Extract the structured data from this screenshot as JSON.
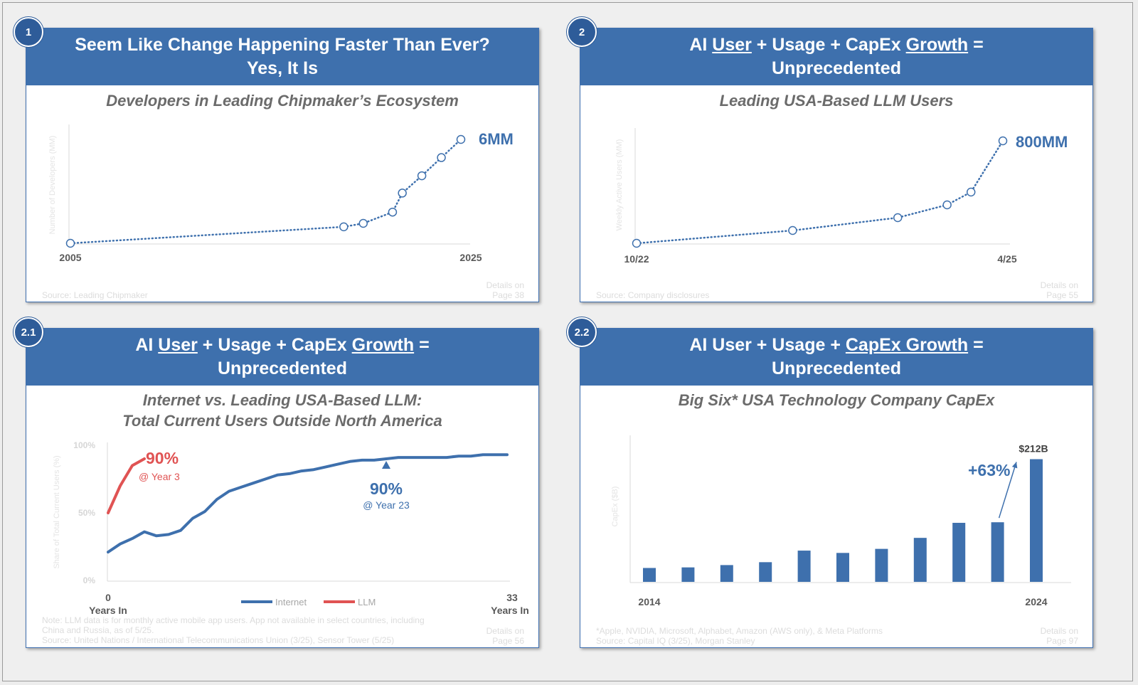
{
  "panels": [
    {
      "badge": "1",
      "header": {
        "line1": "Seem Like Change Happening Faster Than Ever?",
        "line2": "Yes, It Is"
      },
      "subtitle": "Developers in Leading Chipmaker’s Ecosystem",
      "chart_data": {
        "type": "line",
        "title": "Developers in Leading Chipmaker’s Ecosystem",
        "x": [
          2005,
          2019,
          2020,
          2021.5,
          2022,
          2023,
          2024,
          2025
        ],
        "y": [
          0,
          0.95,
          1.15,
          1.8,
          2.9,
          3.9,
          4.95,
          6
        ],
        "xlim": [
          2005,
          2025
        ],
        "ylim": [
          0,
          6
        ],
        "x_tick_labels": [
          "2005",
          "2025"
        ],
        "end_label": "6MM",
        "ylabel": "Number of Developers (MM)",
        "style": "dotted line with hollow circle markers",
        "grid": false
      },
      "footer": {
        "source": "Source: Leading Chipmaker",
        "details_line1": "Details on",
        "details_line2": "Page 38"
      }
    },
    {
      "badge": "2",
      "header": {
        "line1_parts": [
          "AI ",
          "User",
          " + Usage + CapEx ",
          "Growth",
          " ="
        ],
        "line2": "Unprecedented"
      },
      "subtitle": "Leading USA-Based LLM Users",
      "chart_data": {
        "type": "line",
        "title": "Leading USA-Based LLM Users",
        "x": [
          "10/22",
          "10/23",
          "9/24",
          "12/24",
          "2/25",
          "4/25"
        ],
        "x_index": [
          0,
          9.8,
          16.4,
          19.5,
          21,
          23
        ],
        "y": [
          0,
          100,
          200,
          300,
          400,
          800
        ],
        "ylim": [
          0,
          800
        ],
        "x_tick_labels": [
          "10/22",
          "4/25"
        ],
        "end_label": "800MM",
        "ylabel": "Weekly Active Users (MM)",
        "style": "dotted line with hollow circle markers",
        "grid": false
      },
      "footer": {
        "source": "Source: Company disclosures",
        "details_line1": "Details on",
        "details_line2": "Page 55"
      }
    },
    {
      "badge": "2.1",
      "header": {
        "line1_parts": [
          "AI ",
          "User",
          " + Usage + CapEx ",
          "Growth",
          " ="
        ],
        "line2": "Unprecedented"
      },
      "subtitle_line1": "Internet vs. Leading USA-Based LLM:",
      "subtitle_line2": "Total Current Users Outside North America",
      "chart_data": {
        "type": "line",
        "title": "Internet vs. Leading USA-Based LLM: Total Current Users Outside North America",
        "ylabel": "Share of Total Current Users (%)",
        "xlim": [
          0,
          33
        ],
        "ylim": [
          0,
          100
        ],
        "y_ticks": [
          "0%",
          "50%",
          "100%"
        ],
        "x_tick_labels": [
          "0",
          "33"
        ],
        "x_tick_sublabel": "Years In",
        "series": [
          {
            "name": "Internet",
            "color": "#3e70ad",
            "x": [
              0,
              1,
              2,
              3,
              4,
              5,
              6,
              7,
              8,
              9,
              10,
              11,
              12,
              13,
              14,
              15,
              16,
              17,
              18,
              19,
              20,
              21,
              22,
              23,
              24,
              25,
              26,
              27,
              28,
              29,
              30,
              31,
              32,
              33
            ],
            "y": [
              21,
              27,
              31,
              36,
              33,
              34,
              37,
              46,
              51,
              60,
              66,
              69,
              72,
              75,
              78,
              79,
              81,
              82,
              84,
              86,
              88,
              89,
              89,
              90,
              91,
              91,
              91,
              91,
              91,
              92,
              92,
              93,
              93,
              93
            ]
          },
          {
            "name": "LLM",
            "color": "#e05353",
            "x": [
              0,
              1,
              2,
              3
            ],
            "y": [
              50,
              70,
              85,
              90
            ]
          }
        ],
        "annotations": [
          {
            "value": "90%",
            "sub": "@ Year 3",
            "series": "LLM"
          },
          {
            "value": "90%",
            "sub": "@ Year 23",
            "series": "Internet"
          }
        ],
        "legend": "bottom"
      },
      "footer": {
        "note_line1": "Note: LLM data is for monthly active mobile app users. App not available in select countries, including",
        "note_line2": "China and Russia, as of 5/25.",
        "note_line3": "Source: United Nations / International Telecommunications Union (3/25), Sensor Tower (5/25)",
        "details_line1": "Details on",
        "details_line2": "Page 56"
      }
    },
    {
      "badge": "2.2",
      "header": {
        "line1_parts": [
          "AI User + Usage + ",
          "CapEx Growth",
          " ="
        ],
        "line2": "Unprecedented"
      },
      "subtitle": "Big Six* USA Technology Company CapEx",
      "chart_data": {
        "type": "bar",
        "title": "Big Six* USA Technology Company CapEx",
        "ylabel": "CapEx ($B)",
        "categories": [
          "2014",
          "2015",
          "2016",
          "2017",
          "2018",
          "2019",
          "2020",
          "2021",
          "2022",
          "2023",
          "2024"
        ],
        "values": [
          24,
          25,
          29,
          34,
          54,
          50,
          57,
          76,
          102,
          103,
          212
        ],
        "ylim": [
          0,
          220
        ],
        "x_tick_labels": [
          "2014",
          "2024"
        ],
        "last_label": "$212B",
        "growth_label": "+63%",
        "color": "#3e70ad",
        "grid": false
      },
      "footer": {
        "note_line1": "*Apple, NVIDIA, Microsoft, Alphabet, Amazon (AWS only), & Meta Platforms",
        "note_line2": "Source: Capital IQ (3/25), Morgan Stanley",
        "details_line1": "Details on",
        "details_line2": "Page 97"
      }
    }
  ],
  "colors": {
    "header": "#3e70ad",
    "badge": "#2e5c99",
    "series_blue": "#3e70ad",
    "series_red": "#e05353"
  }
}
